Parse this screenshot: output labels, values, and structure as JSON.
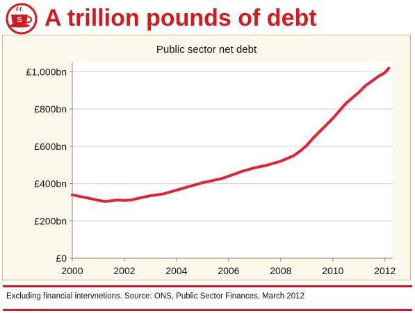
{
  "header": {
    "title": "A trillion pounds of debt",
    "logo_icon": "teacup-logo-icon",
    "logo_letter": "S"
  },
  "footer": {
    "note": "Excluding financial intervnetions. Source: ONS, Public Sector Finances, March 2012"
  },
  "colors": {
    "accent": "#d7191c",
    "panel_bg": "#fdf8ec",
    "panel_border": "#c9b889",
    "grid": "#cfcfcf"
  },
  "chart_data": {
    "type": "line",
    "title": "Public sector net debt",
    "xlabel": "",
    "ylabel": "",
    "xlim": [
      2000,
      2012.3
    ],
    "ylim": [
      0,
      1050
    ],
    "grid": true,
    "legend": "none",
    "x_ticks": [
      2000,
      2002,
      2004,
      2006,
      2008,
      2010,
      2012
    ],
    "y_ticks": [
      0,
      200,
      400,
      600,
      800,
      1000
    ],
    "y_tick_labels": [
      "£0",
      "£200bn",
      "£400bn",
      "£600bn",
      "£800bn",
      "£1,000bn"
    ],
    "series": [
      {
        "name": "",
        "color": "#e8212e",
        "points": [
          [
            2000.0,
            340
          ],
          [
            2000.25,
            332
          ],
          [
            2000.5,
            325
          ],
          [
            2000.75,
            318
          ],
          [
            2001.0,
            310
          ],
          [
            2001.25,
            305
          ],
          [
            2001.5,
            308
          ],
          [
            2001.75,
            312
          ],
          [
            2002.0,
            310
          ],
          [
            2002.25,
            312
          ],
          [
            2002.5,
            320
          ],
          [
            2002.75,
            328
          ],
          [
            2003.0,
            335
          ],
          [
            2003.25,
            340
          ],
          [
            2003.5,
            345
          ],
          [
            2003.75,
            355
          ],
          [
            2004.0,
            365
          ],
          [
            2004.25,
            375
          ],
          [
            2004.5,
            385
          ],
          [
            2004.75,
            395
          ],
          [
            2005.0,
            405
          ],
          [
            2005.25,
            412
          ],
          [
            2005.5,
            420
          ],
          [
            2005.75,
            428
          ],
          [
            2006.0,
            440
          ],
          [
            2006.25,
            452
          ],
          [
            2006.5,
            465
          ],
          [
            2006.75,
            475
          ],
          [
            2007.0,
            485
          ],
          [
            2007.25,
            492
          ],
          [
            2007.5,
            500
          ],
          [
            2007.75,
            510
          ],
          [
            2008.0,
            520
          ],
          [
            2008.25,
            535
          ],
          [
            2008.5,
            550
          ],
          [
            2008.75,
            575
          ],
          [
            2009.0,
            605
          ],
          [
            2009.25,
            645
          ],
          [
            2009.5,
            680
          ],
          [
            2009.75,
            715
          ],
          [
            2010.0,
            750
          ],
          [
            2010.25,
            790
          ],
          [
            2010.5,
            830
          ],
          [
            2010.75,
            860
          ],
          [
            2011.0,
            890
          ],
          [
            2011.25,
            925
          ],
          [
            2011.5,
            950
          ],
          [
            2011.75,
            975
          ],
          [
            2012.0,
            995
          ],
          [
            2012.15,
            1020
          ]
        ]
      }
    ]
  }
}
